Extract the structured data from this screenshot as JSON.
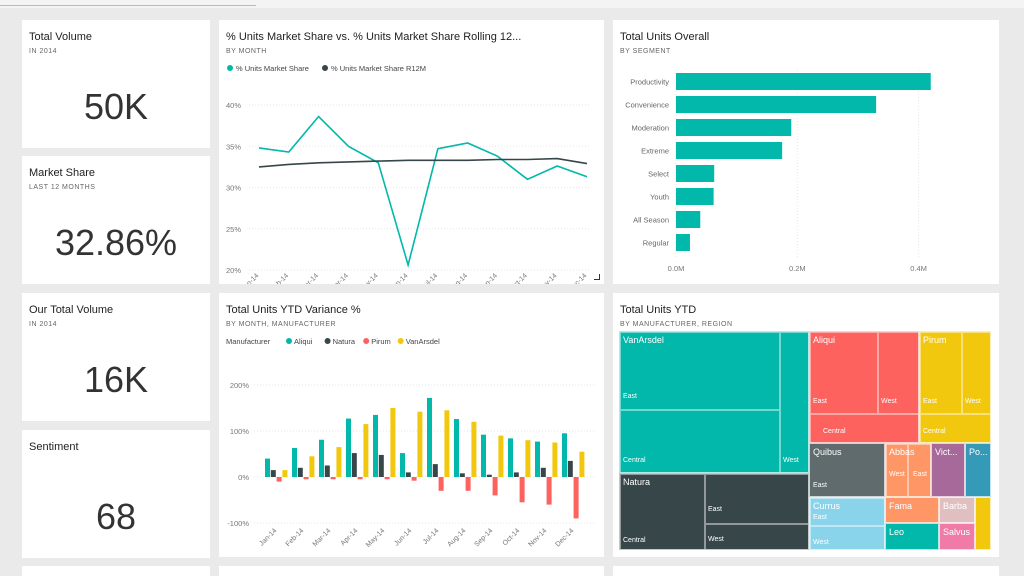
{
  "colors": {
    "teal": "#01b8aa",
    "dark": "#374649",
    "red": "#fd625e",
    "yellow": "#f2c80f",
    "gray": "#5f6b6d",
    "lightblue": "#8ad4eb",
    "orange": "#fe9666",
    "purple": "#a66999",
    "blue": "#3599b8",
    "lightgray": "#dfbfbf"
  },
  "tiles": {
    "total_volume": {
      "title": "Total Volume",
      "subtitle": "IN 2014",
      "value": "50K"
    },
    "market_share": {
      "title": "Market Share",
      "subtitle": "LAST 12 MONTHS",
      "value": "32.86%"
    },
    "our_total_volume": {
      "title": "Our Total Volume",
      "subtitle": "IN 2014",
      "value": "16K"
    },
    "sentiment": {
      "title": "Sentiment",
      "value": "68"
    },
    "market_share_chart": {
      "title": "% Units Market Share vs. % Units Market Share Rolling 12...",
      "subtitle": "BY MONTH"
    },
    "units_overall": {
      "title": "Total Units Overall",
      "subtitle": "BY SEGMENT"
    },
    "ytd_variance": {
      "title": "Total Units YTD Variance %",
      "subtitle": "BY MONTH, MANUFACTURER"
    },
    "units_ytd": {
      "title": "Total Units YTD",
      "subtitle": "BY MANUFACTURER, REGION"
    }
  },
  "chart_data": [
    {
      "type": "line",
      "x": [
        "Jan-14",
        "Feb-14",
        "Mar-14",
        "Apr-14",
        "May-14",
        "Jun-14",
        "Jul-14",
        "Aug-14",
        "Sep-14",
        "Oct-14",
        "Nov-14",
        "Dec-14"
      ],
      "series": [
        {
          "name": "% Units Market Share",
          "color": "#01b8aa",
          "values": [
            34.8,
            34.3,
            38.6,
            35.0,
            33.0,
            20.6,
            34.7,
            35.4,
            33.8,
            31.0,
            32.6,
            31.3
          ]
        },
        {
          "name": "% Units Market Share R12M",
          "color": "#374649",
          "values": [
            32.5,
            32.8,
            33.0,
            33.1,
            33.2,
            33.3,
            33.3,
            33.3,
            33.4,
            33.4,
            33.5,
            32.9
          ]
        }
      ],
      "y_ticks": [
        "40%",
        "35%",
        "30%",
        "25%",
        "20%"
      ],
      "ylim": [
        20,
        40
      ]
    },
    {
      "type": "bar",
      "orientation": "horizontal",
      "categories": [
        "Productivity",
        "Convenience",
        "Moderation",
        "Extreme",
        "Select",
        "Youth",
        "All Season",
        "Regular"
      ],
      "values": [
        420000,
        330000,
        190000,
        175000,
        63000,
        62000,
        40000,
        23000
      ],
      "x_ticks": [
        "0.0M",
        "0.2M",
        "0.4M"
      ],
      "xlim": [
        0,
        460000
      ],
      "color": "#01b8aa"
    },
    {
      "type": "bar",
      "legend_title": "Manufacturer",
      "categories": [
        "Jan-14",
        "Feb-14",
        "Mar-14",
        "Apr-14",
        "May-14",
        "Jun-14",
        "Jul-14",
        "Aug-14",
        "Sep-14",
        "Oct-14",
        "Nov-14",
        "Dec-14"
      ],
      "series": [
        {
          "name": "Aliqui",
          "color": "#01b8aa",
          "values": [
            40,
            63,
            81,
            127,
            135,
            52,
            172,
            126,
            92,
            84,
            77,
            95
          ]
        },
        {
          "name": "Natura",
          "color": "#374649",
          "values": [
            15,
            20,
            25,
            52,
            48,
            10,
            28,
            8,
            5,
            10,
            20,
            35
          ]
        },
        {
          "name": "Pirum",
          "color": "#fd625e",
          "values": [
            -10,
            -5,
            -5,
            -5,
            -5,
            -8,
            -30,
            -30,
            -40,
            -55,
            -60,
            -90
          ]
        },
        {
          "name": "VanArsdel",
          "color": "#f2c80f",
          "values": [
            15,
            45,
            65,
            115,
            150,
            142,
            145,
            120,
            90,
            80,
            75,
            55
          ]
        }
      ],
      "y_ticks": [
        "200%",
        "100%",
        "0%",
        "-100%"
      ],
      "ylim": [
        -100,
        200
      ]
    },
    {
      "type": "treemap",
      "items": [
        {
          "name": "VanArsdel",
          "regions": [
            "East",
            "Central",
            "West"
          ]
        },
        {
          "name": "Natura",
          "regions": [
            "Central",
            "East",
            "West"
          ]
        },
        {
          "name": "Aliqui",
          "regions": [
            "East",
            "West",
            "Central"
          ]
        },
        {
          "name": "Pirum",
          "regions": [
            "East",
            "West",
            "Central"
          ]
        },
        {
          "name": "Quibus",
          "regions": [
            "East"
          ]
        },
        {
          "name": "Abbas",
          "regions": [
            "West",
            "East"
          ]
        },
        {
          "name": "Vict...",
          "regions": []
        },
        {
          "name": "Po...",
          "regions": []
        },
        {
          "name": "Currus",
          "regions": [
            "East",
            "West"
          ]
        },
        {
          "name": "Fama",
          "regions": []
        },
        {
          "name": "Barba",
          "regions": []
        },
        {
          "name": "Leo",
          "regions": []
        },
        {
          "name": "Salvus",
          "regions": []
        }
      ]
    }
  ]
}
